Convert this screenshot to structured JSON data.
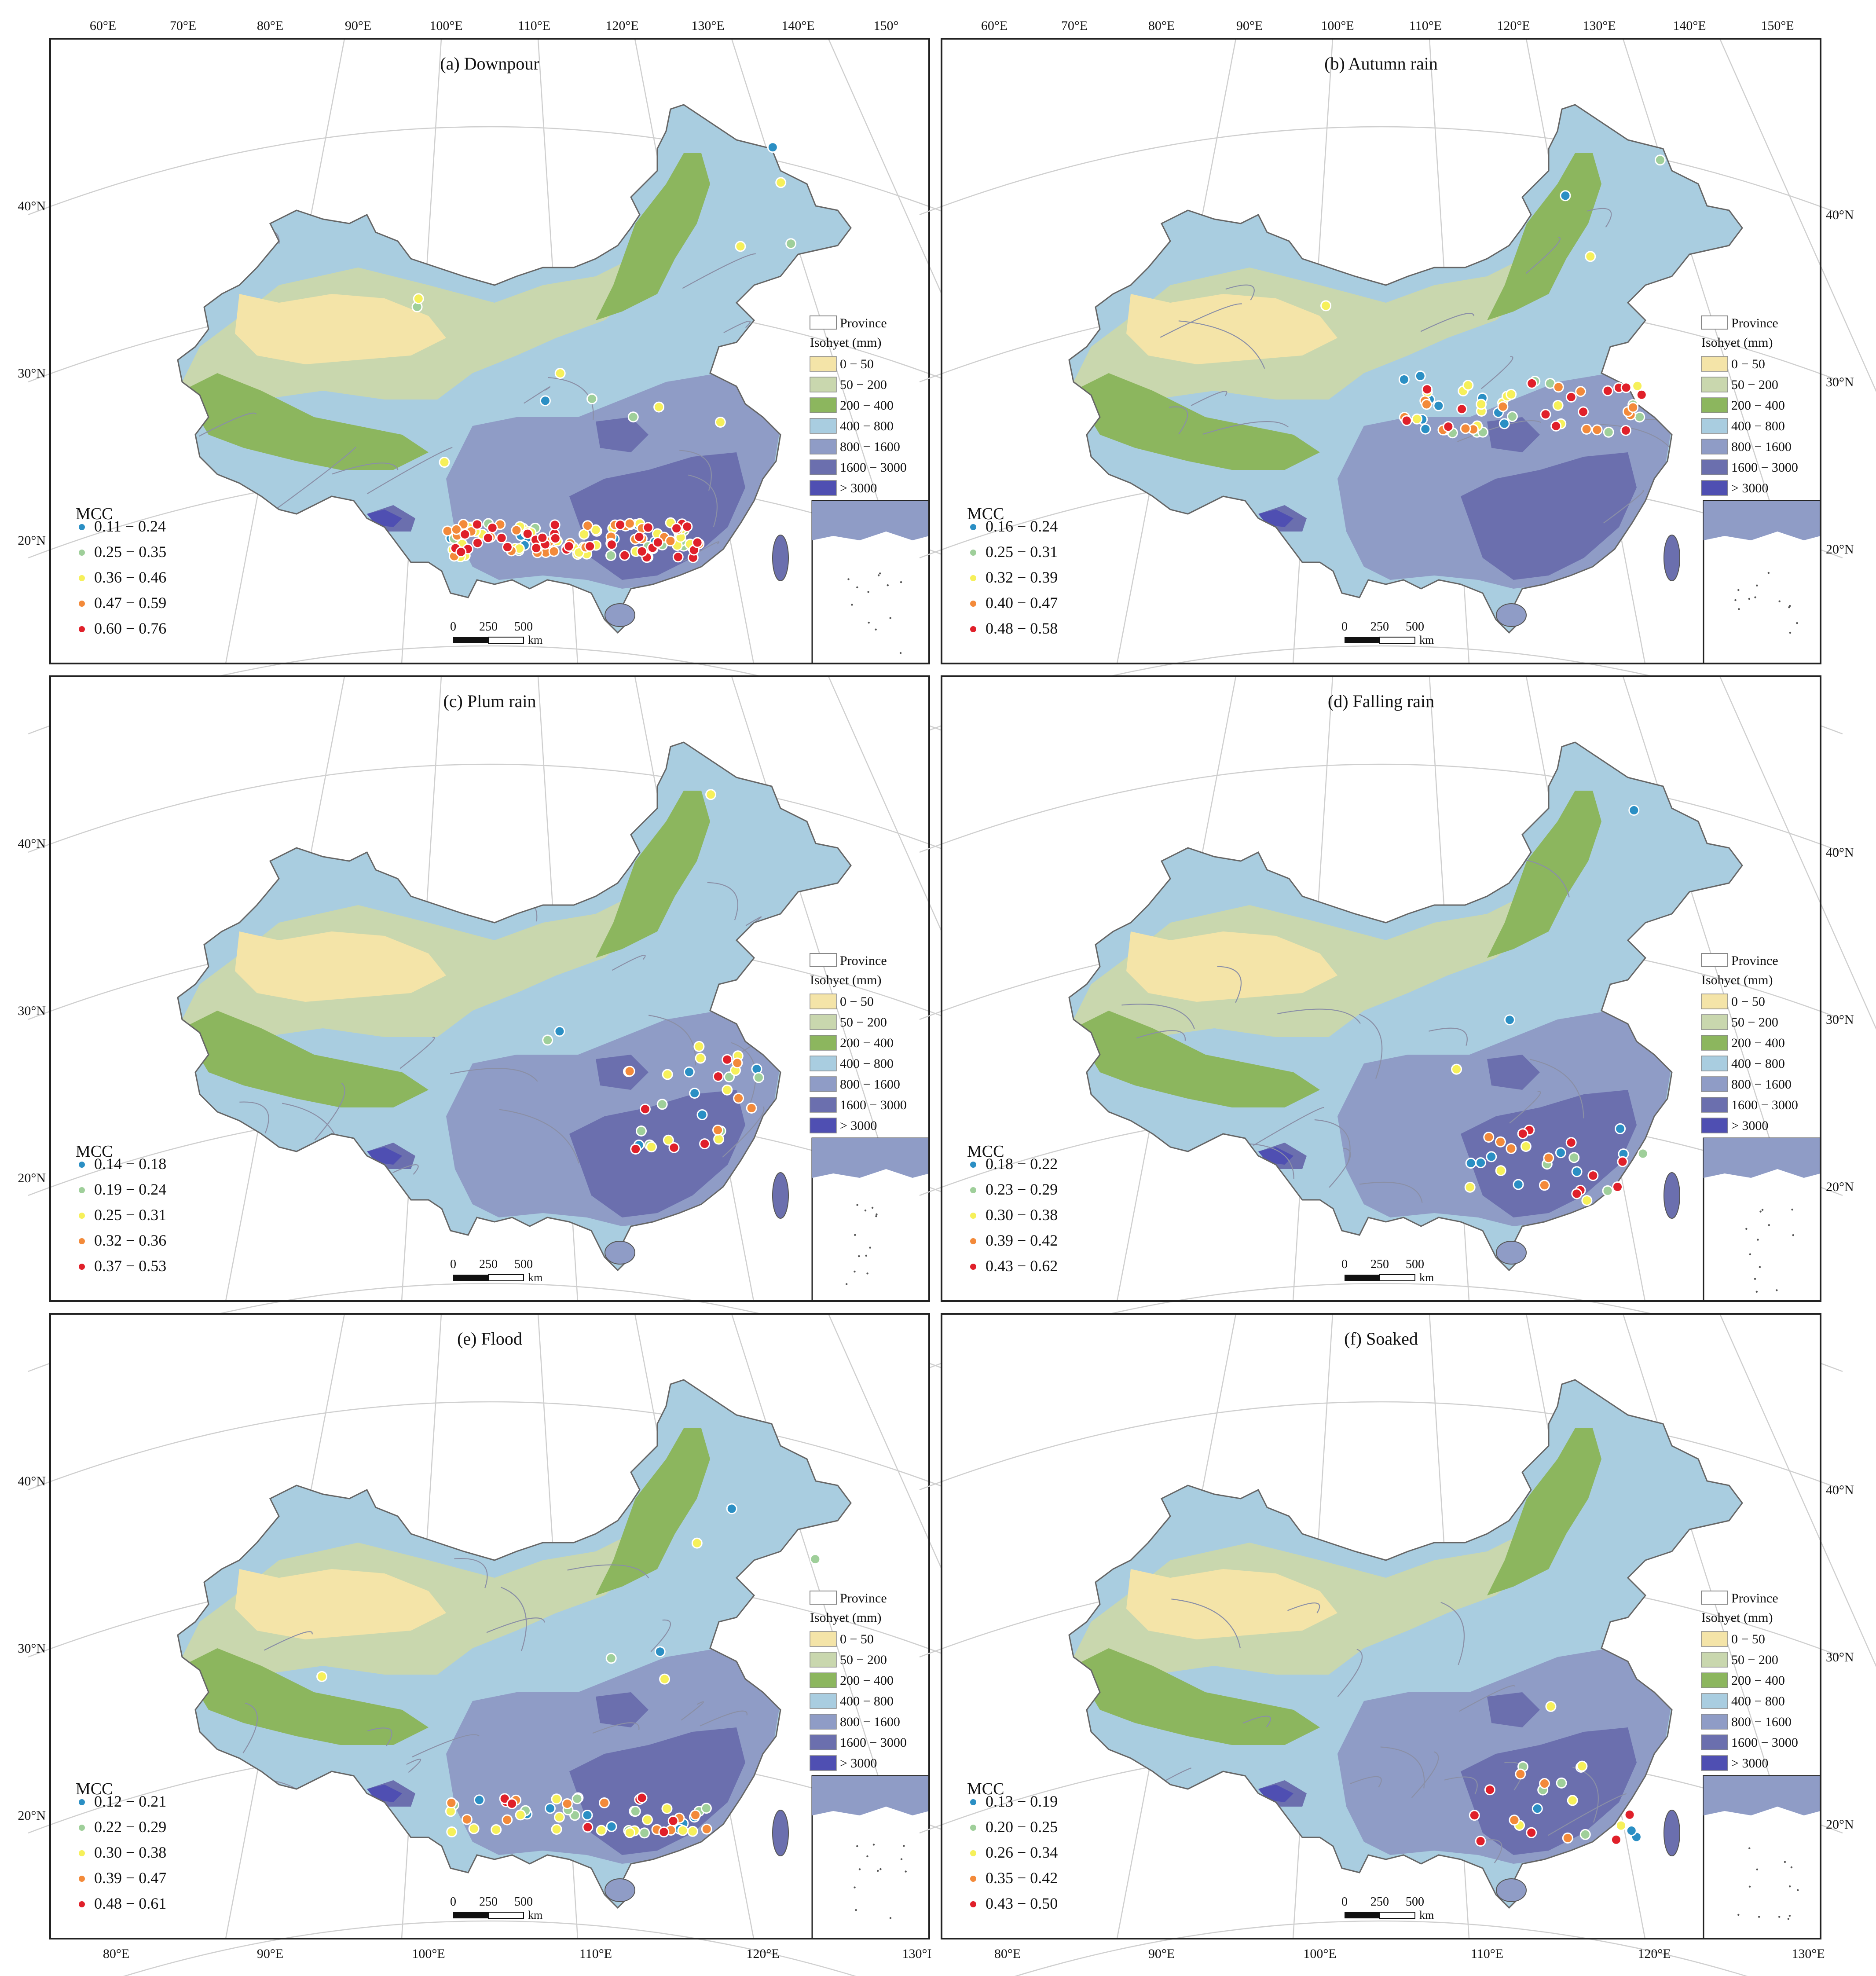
{
  "figure": {
    "top_lon_labels_left": [
      "60°E",
      "70°E",
      "80°E",
      "90°E",
      "100°E",
      "110°E",
      "120°E",
      "130°E",
      "140°E",
      "150°"
    ],
    "top_lon_labels_right": [
      "60°E",
      "70°E",
      "80°E",
      "90°E",
      "100°E",
      "110°E",
      "120°E",
      "130°E",
      "140°E",
      "150°E"
    ],
    "bottom_lon_labels_left": [
      "80°E",
      "90°E",
      "100°E",
      "110°E",
      "120°E",
      "130°I"
    ],
    "bottom_lon_labels_right": [
      "80°E",
      "90°E",
      "100°E",
      "110°E",
      "120°E",
      "130°E"
    ],
    "lat_labels": [
      "40°N",
      "30°N",
      "20°N"
    ]
  },
  "legend": {
    "province_label": "Province",
    "isohyet_title": "Isohyet (mm)",
    "classes": [
      {
        "label": "0 − 50",
        "color": "#f4e4a8"
      },
      {
        "label": "50 − 200",
        "color": "#c9d7ae"
      },
      {
        "label": "200 − 400",
        "color": "#8cb65e"
      },
      {
        "label": "400 − 800",
        "color": "#a9cde0"
      },
      {
        "label": "800 − 1600",
        "color": "#8f9cc6"
      },
      {
        "label": "1600 − 3000",
        "color": "#6b6fae"
      },
      {
        "label": "> 3000",
        "color": "#4f4fb2"
      }
    ],
    "mcc_title": "MCC",
    "mcc_colors": [
      "#2b8fc4",
      "#9fcf9a",
      "#f6f05a",
      "#f38a3a",
      "#e0202a"
    ],
    "scale_labels": [
      "0",
      "250",
      "500"
    ],
    "scale_unit": "km"
  },
  "panels": [
    {
      "title": "(a) Downpour",
      "mcc": [
        "0.11 − 0.24",
        "0.25 − 0.35",
        "0.36 − 0.46",
        "0.47 − 0.59",
        "0.60 − 0.76"
      ],
      "density": [
        10,
        22,
        40,
        30,
        38
      ],
      "bias": "south"
    },
    {
      "title": "(b) Autumn rain",
      "mcc": [
        "0.16 − 0.24",
        "0.25 − 0.31",
        "0.32 − 0.39",
        "0.40 − 0.47",
        "0.48 − 0.58"
      ],
      "density": [
        10,
        10,
        16,
        14,
        14
      ],
      "bias": "central"
    },
    {
      "title": "(c) Plum rain",
      "mcc": [
        "0.14 − 0.18",
        "0.19 − 0.24",
        "0.25 − 0.31",
        "0.32 − 0.36",
        "0.37 − 0.53"
      ],
      "density": [
        6,
        7,
        10,
        6,
        6
      ],
      "bias": "east"
    },
    {
      "title": "(d) Falling rain",
      "mcc": [
        "0.18 − 0.22",
        "0.23 − 0.29",
        "0.30 − 0.38",
        "0.39 − 0.42",
        "0.43 − 0.62"
      ],
      "density": [
        10,
        4,
        5,
        5,
        8
      ],
      "bias": "southeast"
    },
    {
      "title": "(e) Flood",
      "mcc": [
        "0.12 − 0.21",
        "0.22 − 0.29",
        "0.30 − 0.38",
        "0.39 − 0.47",
        "0.48 − 0.61"
      ],
      "density": [
        12,
        12,
        18,
        12,
        8
      ],
      "bias": "south"
    },
    {
      "title": "(f) Soaked",
      "mcc": [
        "0.13 − 0.19",
        "0.20 − 0.25",
        "0.26 − 0.34",
        "0.35 − 0.42",
        "0.43 − 0.50"
      ],
      "density": [
        4,
        4,
        5,
        4,
        6
      ],
      "bias": "southeast"
    }
  ]
}
